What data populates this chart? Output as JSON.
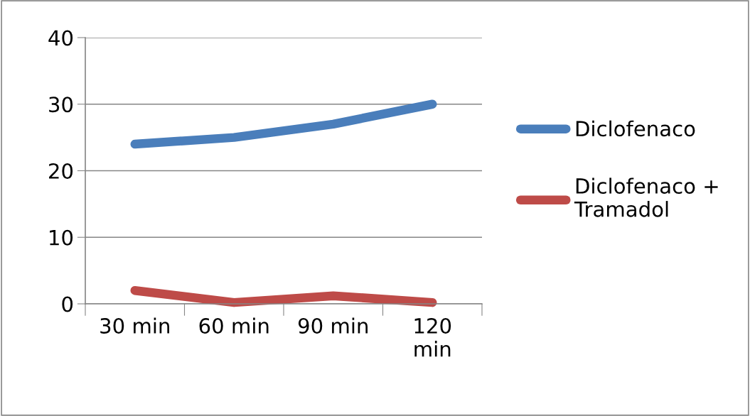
{
  "chart_data": {
    "type": "line",
    "categories": [
      "30 min",
      "60 min",
      "90 min",
      "120 min"
    ],
    "series": [
      {
        "name": "Diclofenaco",
        "color": "#4a7ebb",
        "values": [
          24,
          25,
          27,
          30
        ]
      },
      {
        "name": "Diclofenaco + Tramadol",
        "color": "#be4b48",
        "values": [
          2,
          0.2,
          1.2,
          0.2
        ]
      }
    ],
    "ylim": [
      0,
      40
    ],
    "yticks": [
      0,
      10,
      20,
      30,
      40
    ],
    "grid": "y",
    "legend": "right",
    "line_style": "solid"
  }
}
